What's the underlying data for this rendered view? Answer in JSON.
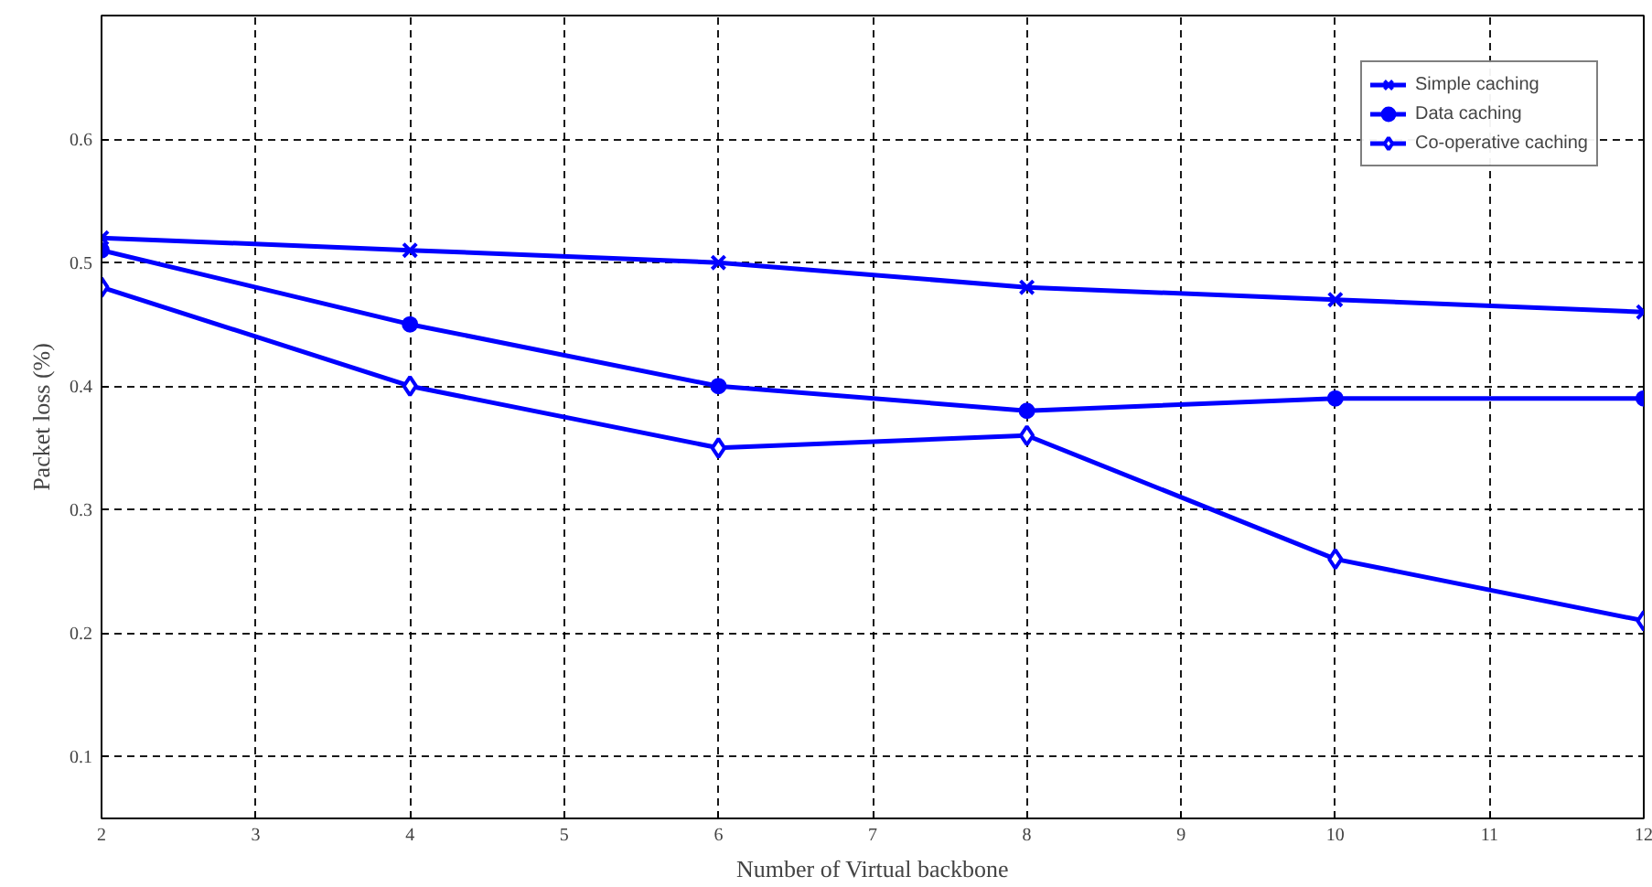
{
  "chart_data": {
    "type": "line",
    "xlabel": "Number of Virtual backbone",
    "ylabel": "Packet loss (%)",
    "x": [
      2,
      4,
      6,
      8,
      10,
      12
    ],
    "series": [
      {
        "name": "Simple caching",
        "color": "#0000ff",
        "marker": "cross",
        "values": [
          0.52,
          0.51,
          0.5,
          0.48,
          0.47,
          0.46
        ]
      },
      {
        "name": "Data caching",
        "color": "#0000ff",
        "marker": "circle",
        "values": [
          0.51,
          0.45,
          0.4,
          0.38,
          0.39,
          0.39
        ]
      },
      {
        "name": "Co-operative caching",
        "color": "#0000ff",
        "marker": "diamond",
        "values": [
          0.48,
          0.4,
          0.35,
          0.36,
          0.26,
          0.21
        ]
      }
    ],
    "xlim": [
      2,
      12
    ],
    "ylim": [
      0.05,
      0.7
    ],
    "xticks": [
      2,
      3,
      4,
      5,
      6,
      7,
      8,
      9,
      10,
      11,
      12
    ],
    "yticks": [
      0.1,
      0.2,
      0.3,
      0.4,
      0.5,
      0.6
    ],
    "grid": true,
    "legend": "top right",
    "line_style": "solid"
  }
}
